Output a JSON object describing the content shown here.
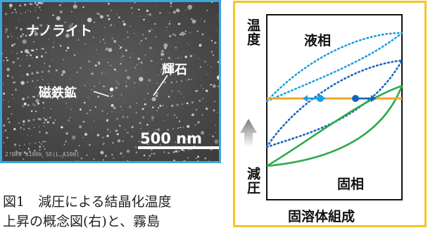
{
  "sem_image": {
    "title": "ナノライト",
    "label_pyroxene": "輝石",
    "label_magnetite": "磁鉄鉱",
    "scale_bar": "500 nm",
    "meta": "2.0kV x100k SE(L,A100)"
  },
  "phase_diagram": {
    "liquid_label": "液相",
    "solid_label": "固相",
    "x_label": "固溶体組成",
    "y_label": "温度",
    "arrow_label": "減圧",
    "colors": {
      "frame": "#f3c623",
      "isotherm": "#f3a623",
      "liquidus": "#1a9ee0",
      "intermediate": "#1565c0",
      "solidus": "#2daa4a"
    }
  },
  "caption": {
    "line1": "図1　減圧による結晶化温度",
    "line2": "上昇の概念図(右)と、霧島"
  }
}
